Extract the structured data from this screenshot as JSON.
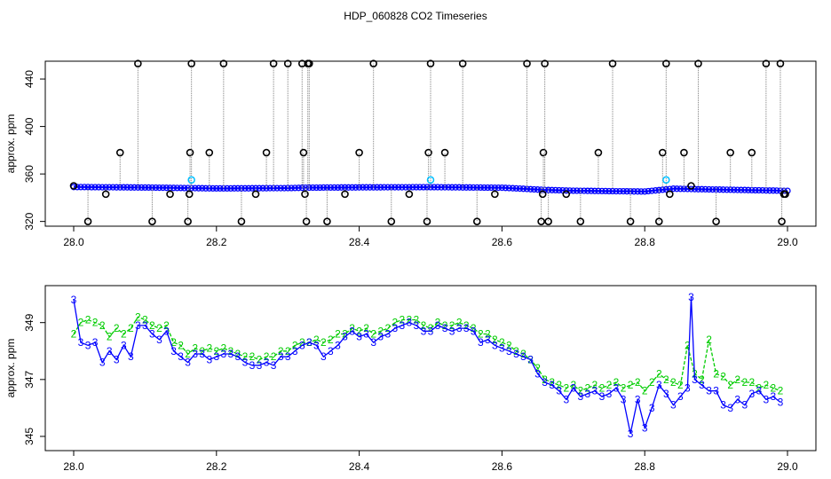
{
  "title": "HDP_060828  CO2 Timeseries",
  "chart_data": [
    {
      "type": "scatter",
      "panel": "top",
      "title": "HDP_060828  CO2 Timeseries",
      "xlabel": "",
      "ylabel": "approx. ppm",
      "xlim": [
        28.0,
        29.0
      ],
      "ylim": [
        316,
        455
      ],
      "x_ticks": [
        "28.0",
        "28.2",
        "28.4",
        "28.6",
        "28.8",
        "29.0"
      ],
      "y_ticks": [
        "320",
        "360",
        "400",
        "440"
      ],
      "grid": false,
      "colors": {
        "black": "#000000",
        "blue": "#0000ff",
        "cyan": "#00bfff",
        "green": "#00cc00",
        "gray": "#808080"
      },
      "series": [
        {
          "marker": "black-circle",
          "color": "#000000",
          "x": [
            28.0,
            28.02,
            28.045,
            28.065,
            28.09,
            28.11,
            28.135,
            28.16,
            28.162,
            28.163,
            28.165,
            28.19,
            28.21,
            28.235,
            28.255,
            28.27,
            28.28,
            28.3,
            28.32,
            28.322,
            28.324,
            28.326,
            28.328,
            28.33,
            28.355,
            28.38,
            28.4,
            28.42,
            28.445,
            28.47,
            28.495,
            28.497,
            28.5,
            28.52,
            28.545,
            28.565,
            28.59,
            28.635,
            28.655,
            28.657,
            28.658,
            28.66,
            28.665,
            28.69,
            28.71,
            28.735,
            28.755,
            28.78,
            28.82,
            28.825,
            28.83,
            28.835,
            28.855,
            28.865,
            28.875,
            28.9,
            28.92,
            28.95,
            28.97,
            28.99,
            28.992,
            28.995,
            28.997
          ],
          "y": [
            350,
            320,
            343,
            378,
            453,
            320,
            343,
            320,
            343,
            378,
            453,
            378,
            453,
            320,
            343,
            378,
            453,
            453,
            453,
            378,
            343,
            320,
            453,
            453,
            320,
            343,
            378,
            453,
            320,
            343,
            320,
            378,
            453,
            378,
            453,
            320,
            343,
            453,
            320,
            343,
            378,
            453,
            320,
            343,
            320,
            378,
            453,
            320,
            320,
            378,
            453,
            343,
            378,
            350,
            453,
            320,
            378,
            378,
            453,
            453,
            320,
            343,
            343
          ]
        },
        {
          "marker": "blue-circle",
          "color": "#0000ff",
          "x": [
            28.0,
            28.1,
            28.2,
            28.3,
            28.33,
            28.4,
            28.5,
            28.6,
            28.66,
            28.7,
            28.8,
            28.84,
            28.9,
            29.0
          ],
          "y": [
            349,
            348.6,
            347.8,
            348.1,
            348.5,
            348.7,
            348.9,
            348.4,
            346.6,
            345.9,
            345.2,
            347.6,
            346.9,
            345.8
          ]
        },
        {
          "marker": "cyan-circle",
          "color": "#00bfff",
          "x": [
            28.165,
            28.5,
            28.83
          ],
          "y": [
            355,
            355,
            355
          ]
        }
      ]
    },
    {
      "type": "line",
      "panel": "bottom",
      "xlabel": "",
      "ylabel": "approx. ppm",
      "xlim": [
        28.0,
        29.0
      ],
      "ylim": [
        344.5,
        350.3
      ],
      "x_ticks": [
        "28.0",
        "28.2",
        "28.4",
        "28.6",
        "28.8",
        "29.0"
      ],
      "y_ticks": [
        "345",
        "347",
        "349"
      ],
      "grid": false,
      "series": [
        {
          "marker": "3",
          "color": "#0000ff",
          "x": [
            28.0,
            28.01,
            28.02,
            28.03,
            28.04,
            28.05,
            28.06,
            28.07,
            28.08,
            28.09,
            28.1,
            28.11,
            28.12,
            28.13,
            28.14,
            28.15,
            28.16,
            28.17,
            28.18,
            28.19,
            28.2,
            28.21,
            28.22,
            28.23,
            28.24,
            28.25,
            28.26,
            28.27,
            28.28,
            28.29,
            28.3,
            28.31,
            28.32,
            28.33,
            28.34,
            28.35,
            28.36,
            28.37,
            28.38,
            28.39,
            28.4,
            28.41,
            28.42,
            28.43,
            28.44,
            28.45,
            28.46,
            28.47,
            28.48,
            28.49,
            28.5,
            28.51,
            28.52,
            28.53,
            28.54,
            28.55,
            28.56,
            28.57,
            28.58,
            28.59,
            28.6,
            28.61,
            28.62,
            28.63,
            28.64,
            28.65,
            28.66,
            28.67,
            28.68,
            28.69,
            28.7,
            28.71,
            28.72,
            28.73,
            28.74,
            28.75,
            28.76,
            28.77,
            28.78,
            28.79,
            28.8,
            28.81,
            28.82,
            28.83,
            28.84,
            28.85,
            28.86,
            28.865,
            28.87,
            28.88,
            28.89,
            28.9,
            28.91,
            28.92,
            28.93,
            28.94,
            28.95,
            28.96,
            28.97,
            28.98,
            28.99
          ],
          "y": [
            349.8,
            348.3,
            348.2,
            348.3,
            347.6,
            348.0,
            347.7,
            348.2,
            347.8,
            348.9,
            348.9,
            348.6,
            348.4,
            348.7,
            348.0,
            347.8,
            347.6,
            347.9,
            347.9,
            347.7,
            347.8,
            347.9,
            347.9,
            347.8,
            347.6,
            347.5,
            347.5,
            347.6,
            347.5,
            347.8,
            347.8,
            348.0,
            348.2,
            348.3,
            348.2,
            347.8,
            348.0,
            348.2,
            348.5,
            348.7,
            348.5,
            348.6,
            348.3,
            348.5,
            348.6,
            348.8,
            348.9,
            349.0,
            348.9,
            348.7,
            348.7,
            348.9,
            348.8,
            348.7,
            348.8,
            348.8,
            348.7,
            348.3,
            348.4,
            348.2,
            348.1,
            348.0,
            347.9,
            347.8,
            347.7,
            347.2,
            346.9,
            346.8,
            346.6,
            346.3,
            346.7,
            346.4,
            346.5,
            346.6,
            346.4,
            346.5,
            346.7,
            346.3,
            345.1,
            346.3,
            345.3,
            346.0,
            346.8,
            346.5,
            346.1,
            346.4,
            346.7,
            349.9,
            347.0,
            346.8,
            346.6,
            346.6,
            346.1,
            346.0,
            346.3,
            346.1,
            346.5,
            346.6,
            346.3,
            346.4,
            346.2
          ]
        },
        {
          "marker": "2",
          "color": "#00cc00",
          "x": [
            28.0,
            28.01,
            28.02,
            28.03,
            28.04,
            28.05,
            28.06,
            28.07,
            28.08,
            28.09,
            28.1,
            28.11,
            28.12,
            28.13,
            28.14,
            28.15,
            28.16,
            28.17,
            28.18,
            28.19,
            28.2,
            28.21,
            28.22,
            28.23,
            28.24,
            28.25,
            28.26,
            28.27,
            28.28,
            28.29,
            28.3,
            28.31,
            28.32,
            28.33,
            28.34,
            28.35,
            28.36,
            28.37,
            28.38,
            28.39,
            28.4,
            28.41,
            28.42,
            28.43,
            28.44,
            28.45,
            28.46,
            28.47,
            28.48,
            28.49,
            28.5,
            28.51,
            28.52,
            28.53,
            28.54,
            28.55,
            28.56,
            28.57,
            28.58,
            28.59,
            28.6,
            28.61,
            28.62,
            28.63,
            28.64,
            28.65,
            28.66,
            28.67,
            28.68,
            28.69,
            28.7,
            28.71,
            28.72,
            28.73,
            28.74,
            28.75,
            28.76,
            28.77,
            28.78,
            28.79,
            28.8,
            28.81,
            28.82,
            28.83,
            28.84,
            28.85,
            28.86,
            28.87,
            28.88,
            28.89,
            28.9,
            28.91,
            28.92,
            28.93,
            28.94,
            28.95,
            28.96,
            28.97,
            28.98,
            28.99
          ],
          "y": [
            348.6,
            349.0,
            349.1,
            349.0,
            348.9,
            348.5,
            348.8,
            348.6,
            348.8,
            349.2,
            349.1,
            348.9,
            348.8,
            348.9,
            348.3,
            348.2,
            347.9,
            348.1,
            348.0,
            348.1,
            348.0,
            348.1,
            348.0,
            347.9,
            347.8,
            347.8,
            347.7,
            347.8,
            347.8,
            348.0,
            348.0,
            348.2,
            348.3,
            348.3,
            348.4,
            348.3,
            348.4,
            348.6,
            348.6,
            348.8,
            348.7,
            348.8,
            348.6,
            348.7,
            348.8,
            349.0,
            349.1,
            349.1,
            349.1,
            348.9,
            348.8,
            349.0,
            348.9,
            348.9,
            349.0,
            348.9,
            348.8,
            348.6,
            348.6,
            348.4,
            348.3,
            348.2,
            348.0,
            347.9,
            347.7,
            347.4,
            347.0,
            346.9,
            346.8,
            346.7,
            346.8,
            346.6,
            346.7,
            346.8,
            346.7,
            346.8,
            346.9,
            346.7,
            346.8,
            346.9,
            346.6,
            346.9,
            347.2,
            347.0,
            346.9,
            346.8,
            348.2,
            347.2,
            347.0,
            348.4,
            347.2,
            347.1,
            346.8,
            347.0,
            346.9,
            346.9,
            346.7,
            346.8,
            346.7,
            346.6
          ]
        }
      ]
    }
  ]
}
